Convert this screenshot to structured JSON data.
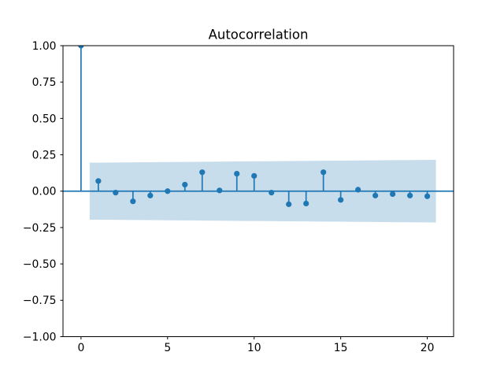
{
  "figure": {
    "background": "#ffffff"
  },
  "chart_data": {
    "type": "stem",
    "title": "Autocorrelation",
    "xlabel": "",
    "ylabel": "",
    "x": [
      0,
      1,
      2,
      3,
      4,
      5,
      6,
      7,
      8,
      9,
      10,
      11,
      12,
      13,
      14,
      15,
      16,
      17,
      18,
      19,
      20
    ],
    "values": [
      1.0,
      0.07,
      -0.01,
      -0.07,
      -0.03,
      0.0,
      0.045,
      0.13,
      0.005,
      0.12,
      0.105,
      -0.01,
      -0.09,
      -0.085,
      0.13,
      -0.06,
      0.01,
      -0.03,
      -0.02,
      -0.03,
      -0.035
    ],
    "xlim": [
      -1.04,
      21.52
    ],
    "ylim": [
      -1.0,
      1.0
    ],
    "x_ticks": {
      "values": [
        0,
        5,
        10,
        15,
        20
      ],
      "labels": [
        "0",
        "5",
        "10",
        "15",
        "20"
      ]
    },
    "y_ticks": {
      "values": [
        1.0,
        0.75,
        0.5,
        0.25,
        0.0,
        -0.25,
        -0.5,
        -0.75,
        -1.0
      ],
      "labels": [
        "1.00",
        "0.75",
        "0.50",
        "0.25",
        "0.00",
        "−0.25",
        "−0.50",
        "−0.75",
        "−1.00"
      ]
    },
    "zero_line": true,
    "grid": false,
    "legend": null,
    "marker": "circle",
    "confidence_band": {
      "x": [
        0.5,
        2,
        3,
        4,
        5,
        6,
        7,
        8,
        9,
        10,
        11,
        12,
        13,
        14,
        15,
        16,
        17,
        18,
        19,
        20.5
      ],
      "upper": [
        0.196,
        0.197,
        0.198,
        0.199,
        0.2,
        0.201,
        0.202,
        0.203,
        0.204,
        0.205,
        0.206,
        0.207,
        0.208,
        0.209,
        0.21,
        0.211,
        0.212,
        0.213,
        0.214,
        0.215
      ],
      "lower": [
        -0.196,
        -0.197,
        -0.198,
        -0.199,
        -0.2,
        -0.201,
        -0.202,
        -0.203,
        -0.204,
        -0.205,
        -0.206,
        -0.207,
        -0.208,
        -0.209,
        -0.21,
        -0.211,
        -0.212,
        -0.213,
        -0.214,
        -0.215
      ]
    },
    "colors": {
      "series": "#1f77b4",
      "zero_line": "#1f77b4",
      "band_fill": "#1f77b4",
      "band_alpha": 0.25,
      "axes": "#000000",
      "text": "#000000"
    }
  }
}
